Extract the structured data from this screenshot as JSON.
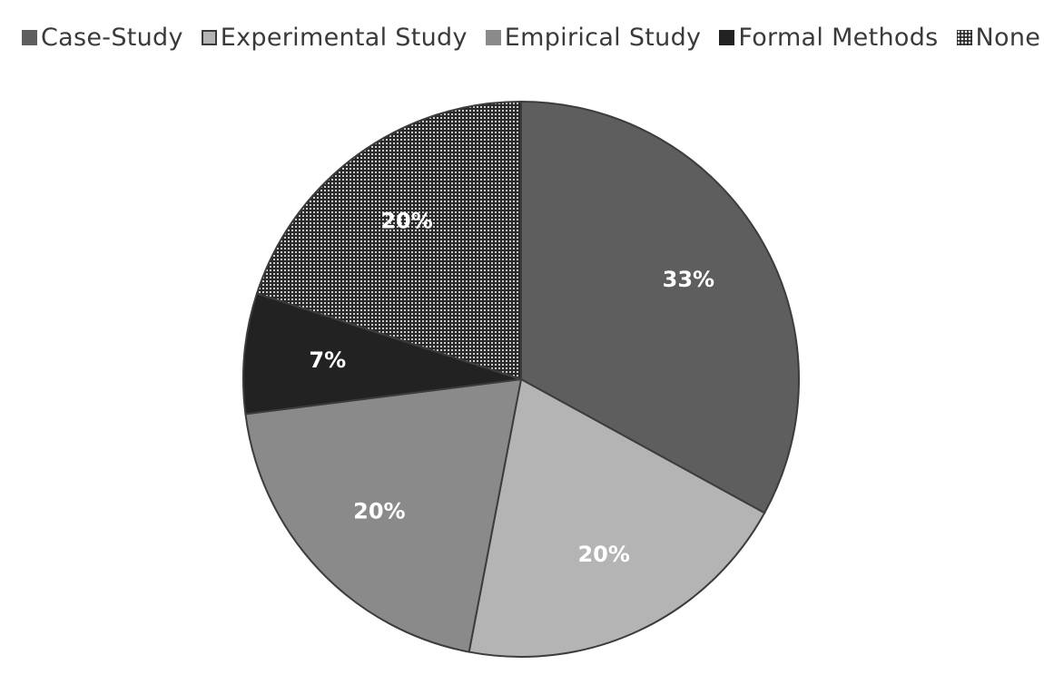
{
  "chart_data": {
    "type": "pie",
    "title": "",
    "legend_position": "top",
    "categories": [
      "Case-Study",
      "Experimental Study",
      "Empirical Study",
      "Formal Methods",
      "None"
    ],
    "values": [
      33,
      20,
      20,
      7,
      20
    ],
    "value_labels": [
      "33%",
      "20%",
      "20%",
      "7%",
      "20%"
    ],
    "colors": [
      "#5e5e5e",
      "#b4b4b4",
      "#8a8a8a",
      "#222222",
      "#2a2a2a"
    ],
    "patterns": [
      "solid",
      "solid",
      "solid",
      "solid",
      "dotted"
    ]
  }
}
